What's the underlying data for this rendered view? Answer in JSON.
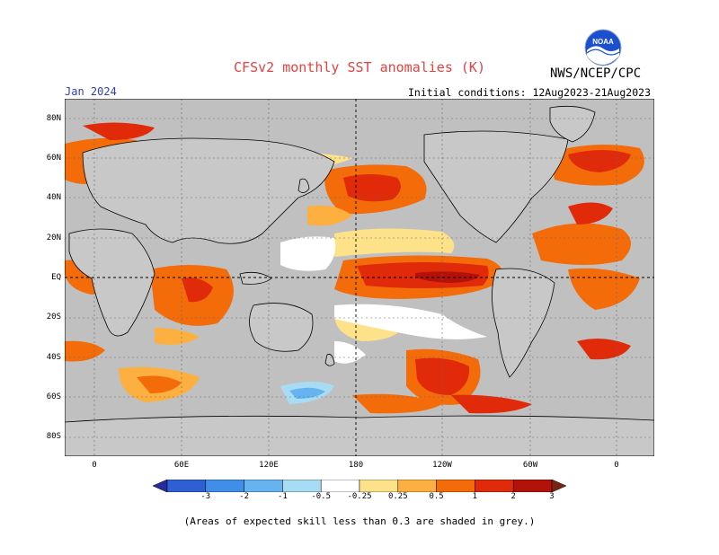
{
  "title": "CFSv2 monthly SST anomalies (K)",
  "agency": "NWS/NCEP/CPC",
  "logo_text": "NOAA",
  "month": "Jan 2024",
  "initial_conditions": "Initial conditions: 12Aug2023-21Aug2023",
  "lat_labels": [
    "80N",
    "60N",
    "40N",
    "20N",
    "EQ",
    "20S",
    "40S",
    "60S",
    "80S"
  ],
  "lon_labels": [
    "0",
    "60E",
    "120E",
    "180",
    "120W",
    "60W",
    "0"
  ],
  "colorbar": {
    "labels": [
      "-3",
      "-2",
      "-1",
      "-0.5",
      "-0.25",
      "0.25",
      "0.5",
      "1",
      "2",
      "3"
    ],
    "colors": [
      "#2a2aa0",
      "#2e5fd4",
      "#3f8ee8",
      "#66b3f0",
      "#a8dcf5",
      "#ffffff",
      "#fde28a",
      "#fdb040",
      "#f46b0a",
      "#e02a0a",
      "#b3120a",
      "#7a2414"
    ]
  },
  "colors": {
    "grey": "#c0c0c0",
    "land": "#c8c8c8"
  },
  "footnote": "(Areas of expected skill less than 0.3 are shaded in grey.)"
}
